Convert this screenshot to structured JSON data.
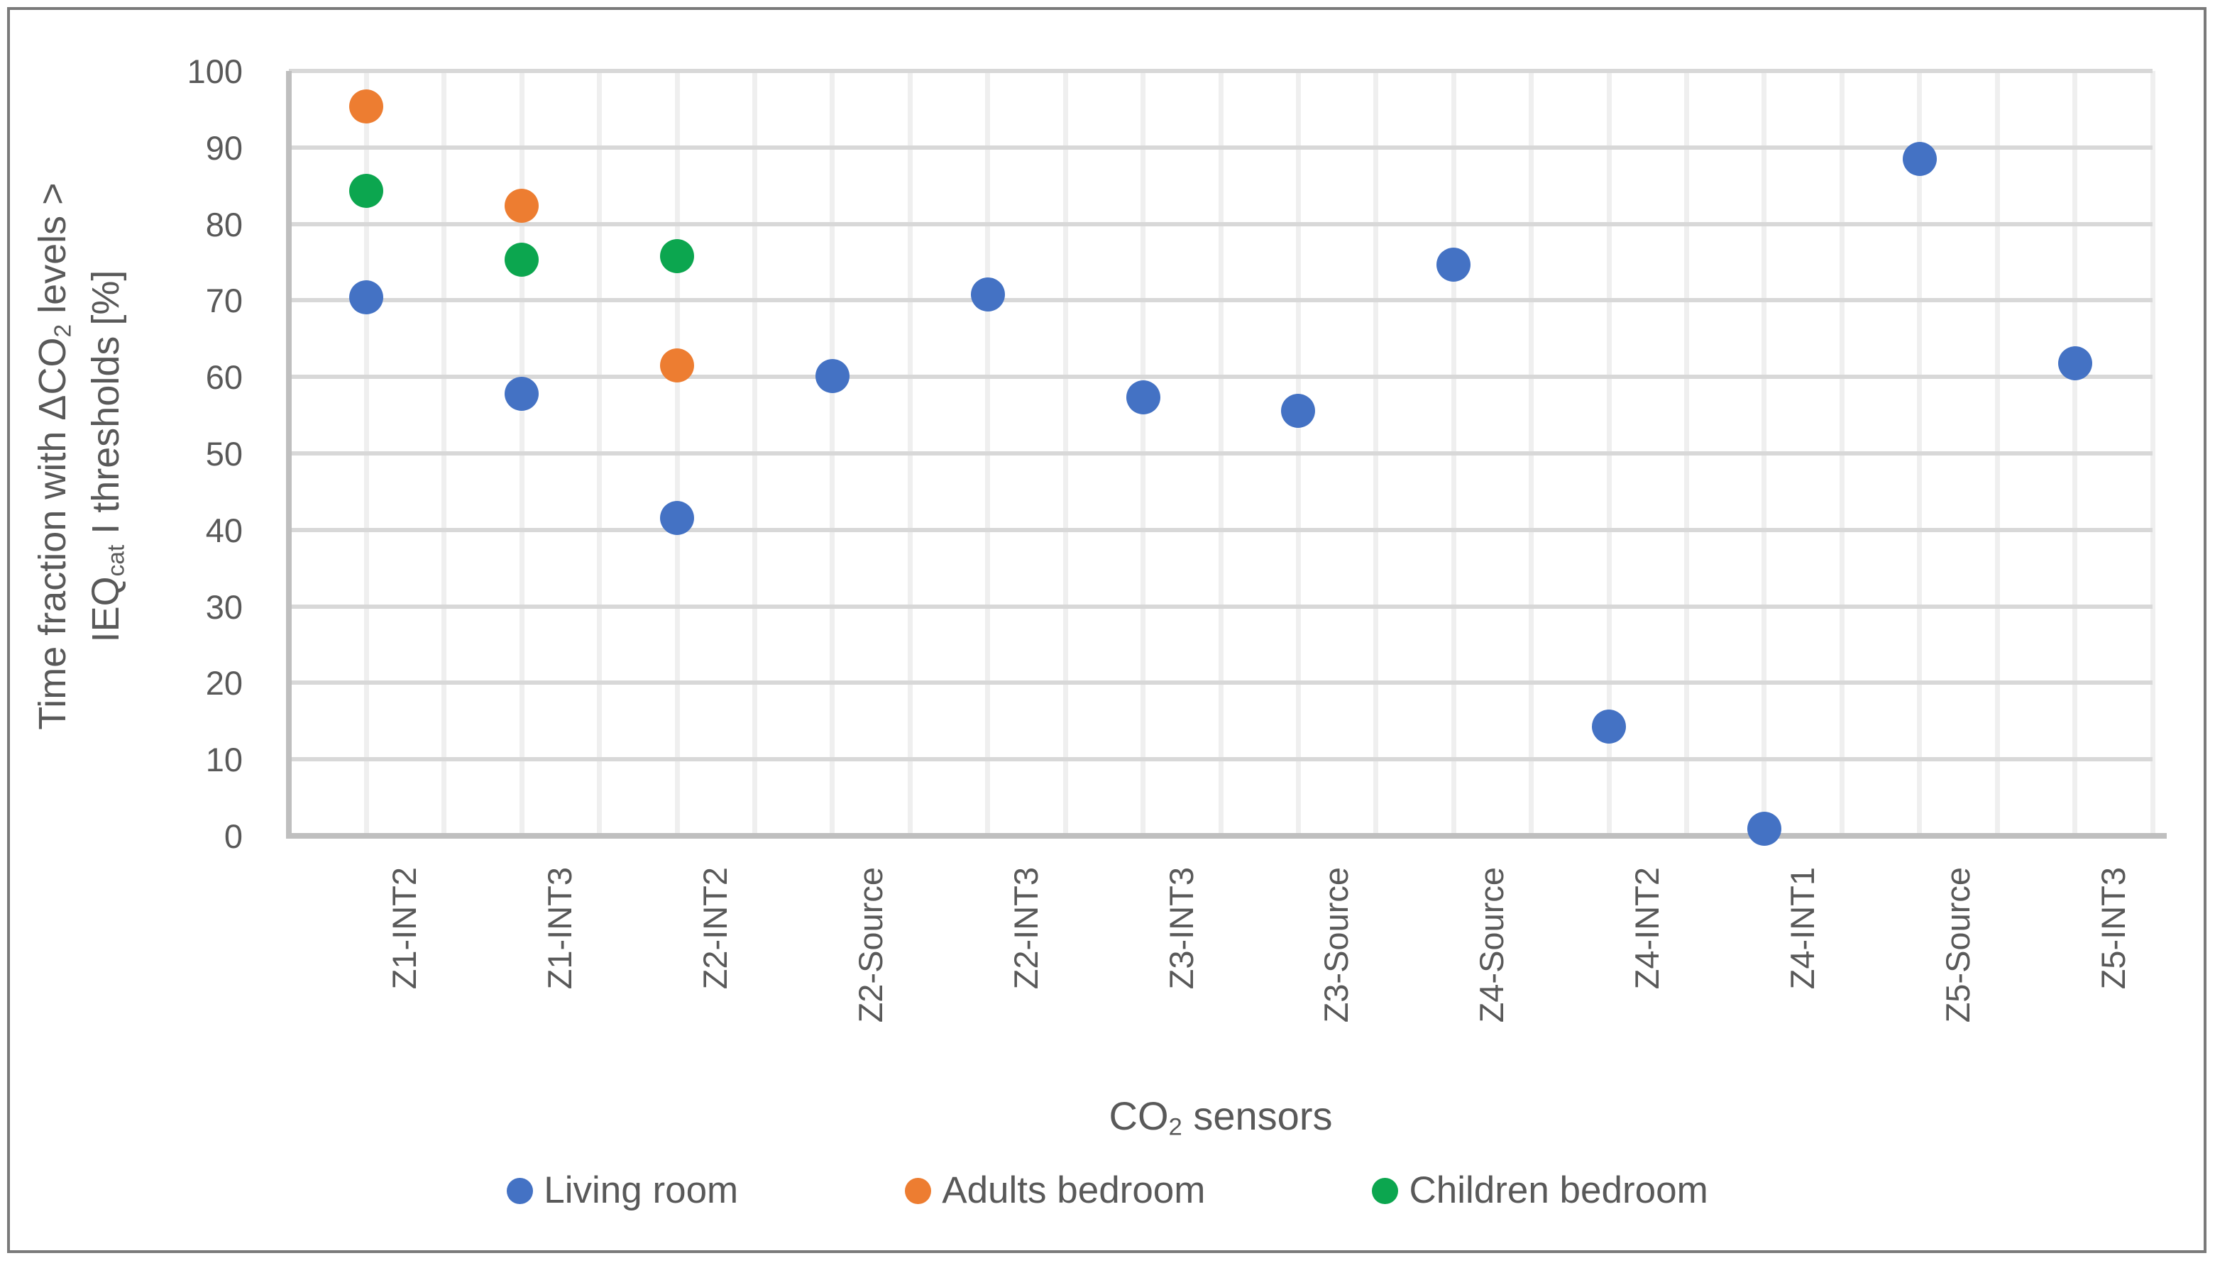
{
  "figure": {
    "background_color": "#FFFFFF",
    "border_color": "#7A7A7A",
    "text_color": "#595959",
    "gridline_color_horizontal": "#D8D8D8",
    "gridline_color_vertical": "#EFEFEF",
    "axis_line_color": "#BFBFBF"
  },
  "chart_data": {
    "type": "scatter",
    "title": "",
    "categories": [
      "Z1-INT2",
      "Z1-INT3",
      "Z2-INT2",
      "Z2-Source",
      "Z2-INT3",
      "Z3-INT3",
      "Z3-Source",
      "Z4-Source",
      "Z4-INT2",
      "Z4-INT1",
      "Z5-Source",
      "Z5-INT3"
    ],
    "series": [
      {
        "name": "Living room",
        "color": "#4472C4",
        "values": [
          70.4,
          57.8,
          41.6,
          60.1,
          70.8,
          57.3,
          55.6,
          74.7,
          14.3,
          0.9,
          88.5,
          61.8
        ]
      },
      {
        "name": "Adults bedroom",
        "color": "#ED7D31",
        "values": [
          95.4,
          82.4,
          61.5,
          null,
          null,
          null,
          null,
          null,
          null,
          null,
          null,
          null
        ]
      },
      {
        "name": "Children bedroom",
        "color": "#0CA64F",
        "values": [
          84.3,
          75.3,
          75.8,
          null,
          null,
          null,
          null,
          null,
          null,
          null,
          null,
          null
        ]
      }
    ],
    "xlabel": "CO2 sensors",
    "xlabel_parts": [
      {
        "text": "CO"
      },
      {
        "text": "2",
        "subscript": true
      },
      {
        "text": " sensors"
      }
    ],
    "ylabel": "Time fraction with ΔCO2 levels > IEQcat I thresholds [%]",
    "ylabel_lines": [
      [
        {
          "text": "Time fraction with ΔCO"
        },
        {
          "text": "2",
          "subscript": true
        },
        {
          "text": " levels >"
        }
      ],
      [
        {
          "text": "IEQ"
        },
        {
          "text": "cat",
          "subscript": true
        },
        {
          "text": " I thresholds [%]"
        }
      ]
    ],
    "ylim": [
      0,
      100
    ],
    "yticks": [
      0,
      10,
      20,
      30,
      40,
      50,
      60,
      70,
      80,
      90,
      100
    ],
    "grid": true,
    "legend_position": "bottom",
    "legend_labels": [
      "Living room",
      "Adults bedroom",
      "Children bedroom"
    ]
  }
}
